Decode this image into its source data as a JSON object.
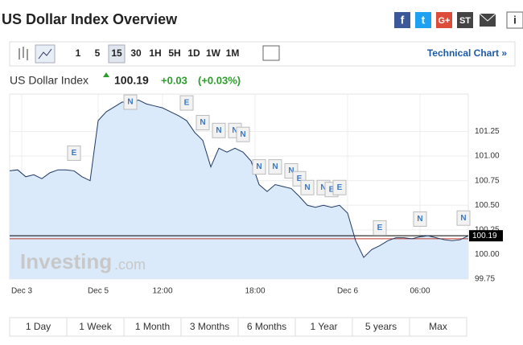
{
  "page_title": "US Dollar Index Overview",
  "share_icons": [
    "f",
    "t",
    "G+",
    "ST",
    "i"
  ],
  "toolbar": {
    "intervals": [
      "1",
      "5",
      "15",
      "30",
      "1H",
      "5H",
      "1D",
      "1W",
      "1M"
    ],
    "active_interval_index": 2,
    "link": "Technical Chart »"
  },
  "quote": {
    "name": "US Dollar Index",
    "price": "100.19",
    "change": "+0.03",
    "change_pct": "(+0.03%)"
  },
  "chart_data": {
    "type": "line",
    "watermark": "Investing",
    "watermark_suffix": ".com",
    "series": [
      {
        "name": "US Dollar Index",
        "color": "#1f3a64",
        "fill": "#dbeafb",
        "values": [
          100.85,
          100.86,
          100.79,
          100.81,
          100.77,
          100.83,
          100.86,
          100.86,
          100.85,
          100.79,
          100.75,
          101.36,
          101.45,
          101.5,
          101.55,
          101.53,
          101.57,
          101.53,
          101.51,
          101.49,
          101.45,
          101.41,
          101.36,
          101.24,
          101.16,
          100.89,
          101.08,
          101.04,
          101.08,
          101.04,
          100.95,
          100.71,
          100.64,
          100.71,
          100.69,
          100.67,
          100.59,
          100.5,
          100.48,
          100.5,
          100.48,
          100.5,
          100.42,
          100.14,
          99.97,
          100.05,
          100.09,
          100.14,
          100.17,
          100.17,
          100.16,
          100.18,
          100.19,
          100.17,
          100.15,
          100.14,
          100.15,
          100.19
        ]
      }
    ],
    "last_price": 100.19,
    "prev_close": 100.16,
    "xlim": [
      0,
      57
    ],
    "xticks": [
      {
        "value": 1.5,
        "label": "Dec 3"
      },
      {
        "value": 11,
        "label": "Dec 5"
      },
      {
        "value": 19,
        "label": "12:00"
      },
      {
        "value": 30.5,
        "label": "18:00"
      },
      {
        "value": 42,
        "label": "Dec 6"
      },
      {
        "value": 51,
        "label": "06:00"
      }
    ],
    "ylim": [
      99.75,
      101.63
    ],
    "yticks": [
      99.75,
      {
        "value": 100,
        "label": "100.00"
      },
      100.25,
      {
        "value": 100.5,
        "label": "100.50"
      },
      100.75,
      {
        "value": 101,
        "label": "101.00"
      },
      101.25
    ],
    "grid": true,
    "events": [
      {
        "label": "E",
        "x": 8
      },
      {
        "label": "N",
        "x": 15
      },
      {
        "label": "E",
        "x": 22
      },
      {
        "label": "N",
        "x": 24
      },
      {
        "label": "N",
        "x": 26
      },
      {
        "label": "N",
        "x": 28
      },
      {
        "label": "N",
        "x": 29
      },
      {
        "label": "N",
        "x": 31
      },
      {
        "label": "N",
        "x": 33
      },
      {
        "label": "N",
        "x": 35
      },
      {
        "label": "E",
        "x": 36
      },
      {
        "label": "N",
        "x": 37
      },
      {
        "label": "N",
        "x": 39
      },
      {
        "label": "E",
        "x": 40
      },
      {
        "label": "E",
        "x": 41
      },
      {
        "label": "E",
        "x": 46
      },
      {
        "label": "N",
        "x": 51
      },
      {
        "label": "N",
        "x": 57
      }
    ]
  },
  "ranges": [
    "1 Day",
    "1 Week",
    "1 Month",
    "3 Months",
    "6 Months",
    "1 Year",
    "5 years",
    "Max"
  ]
}
